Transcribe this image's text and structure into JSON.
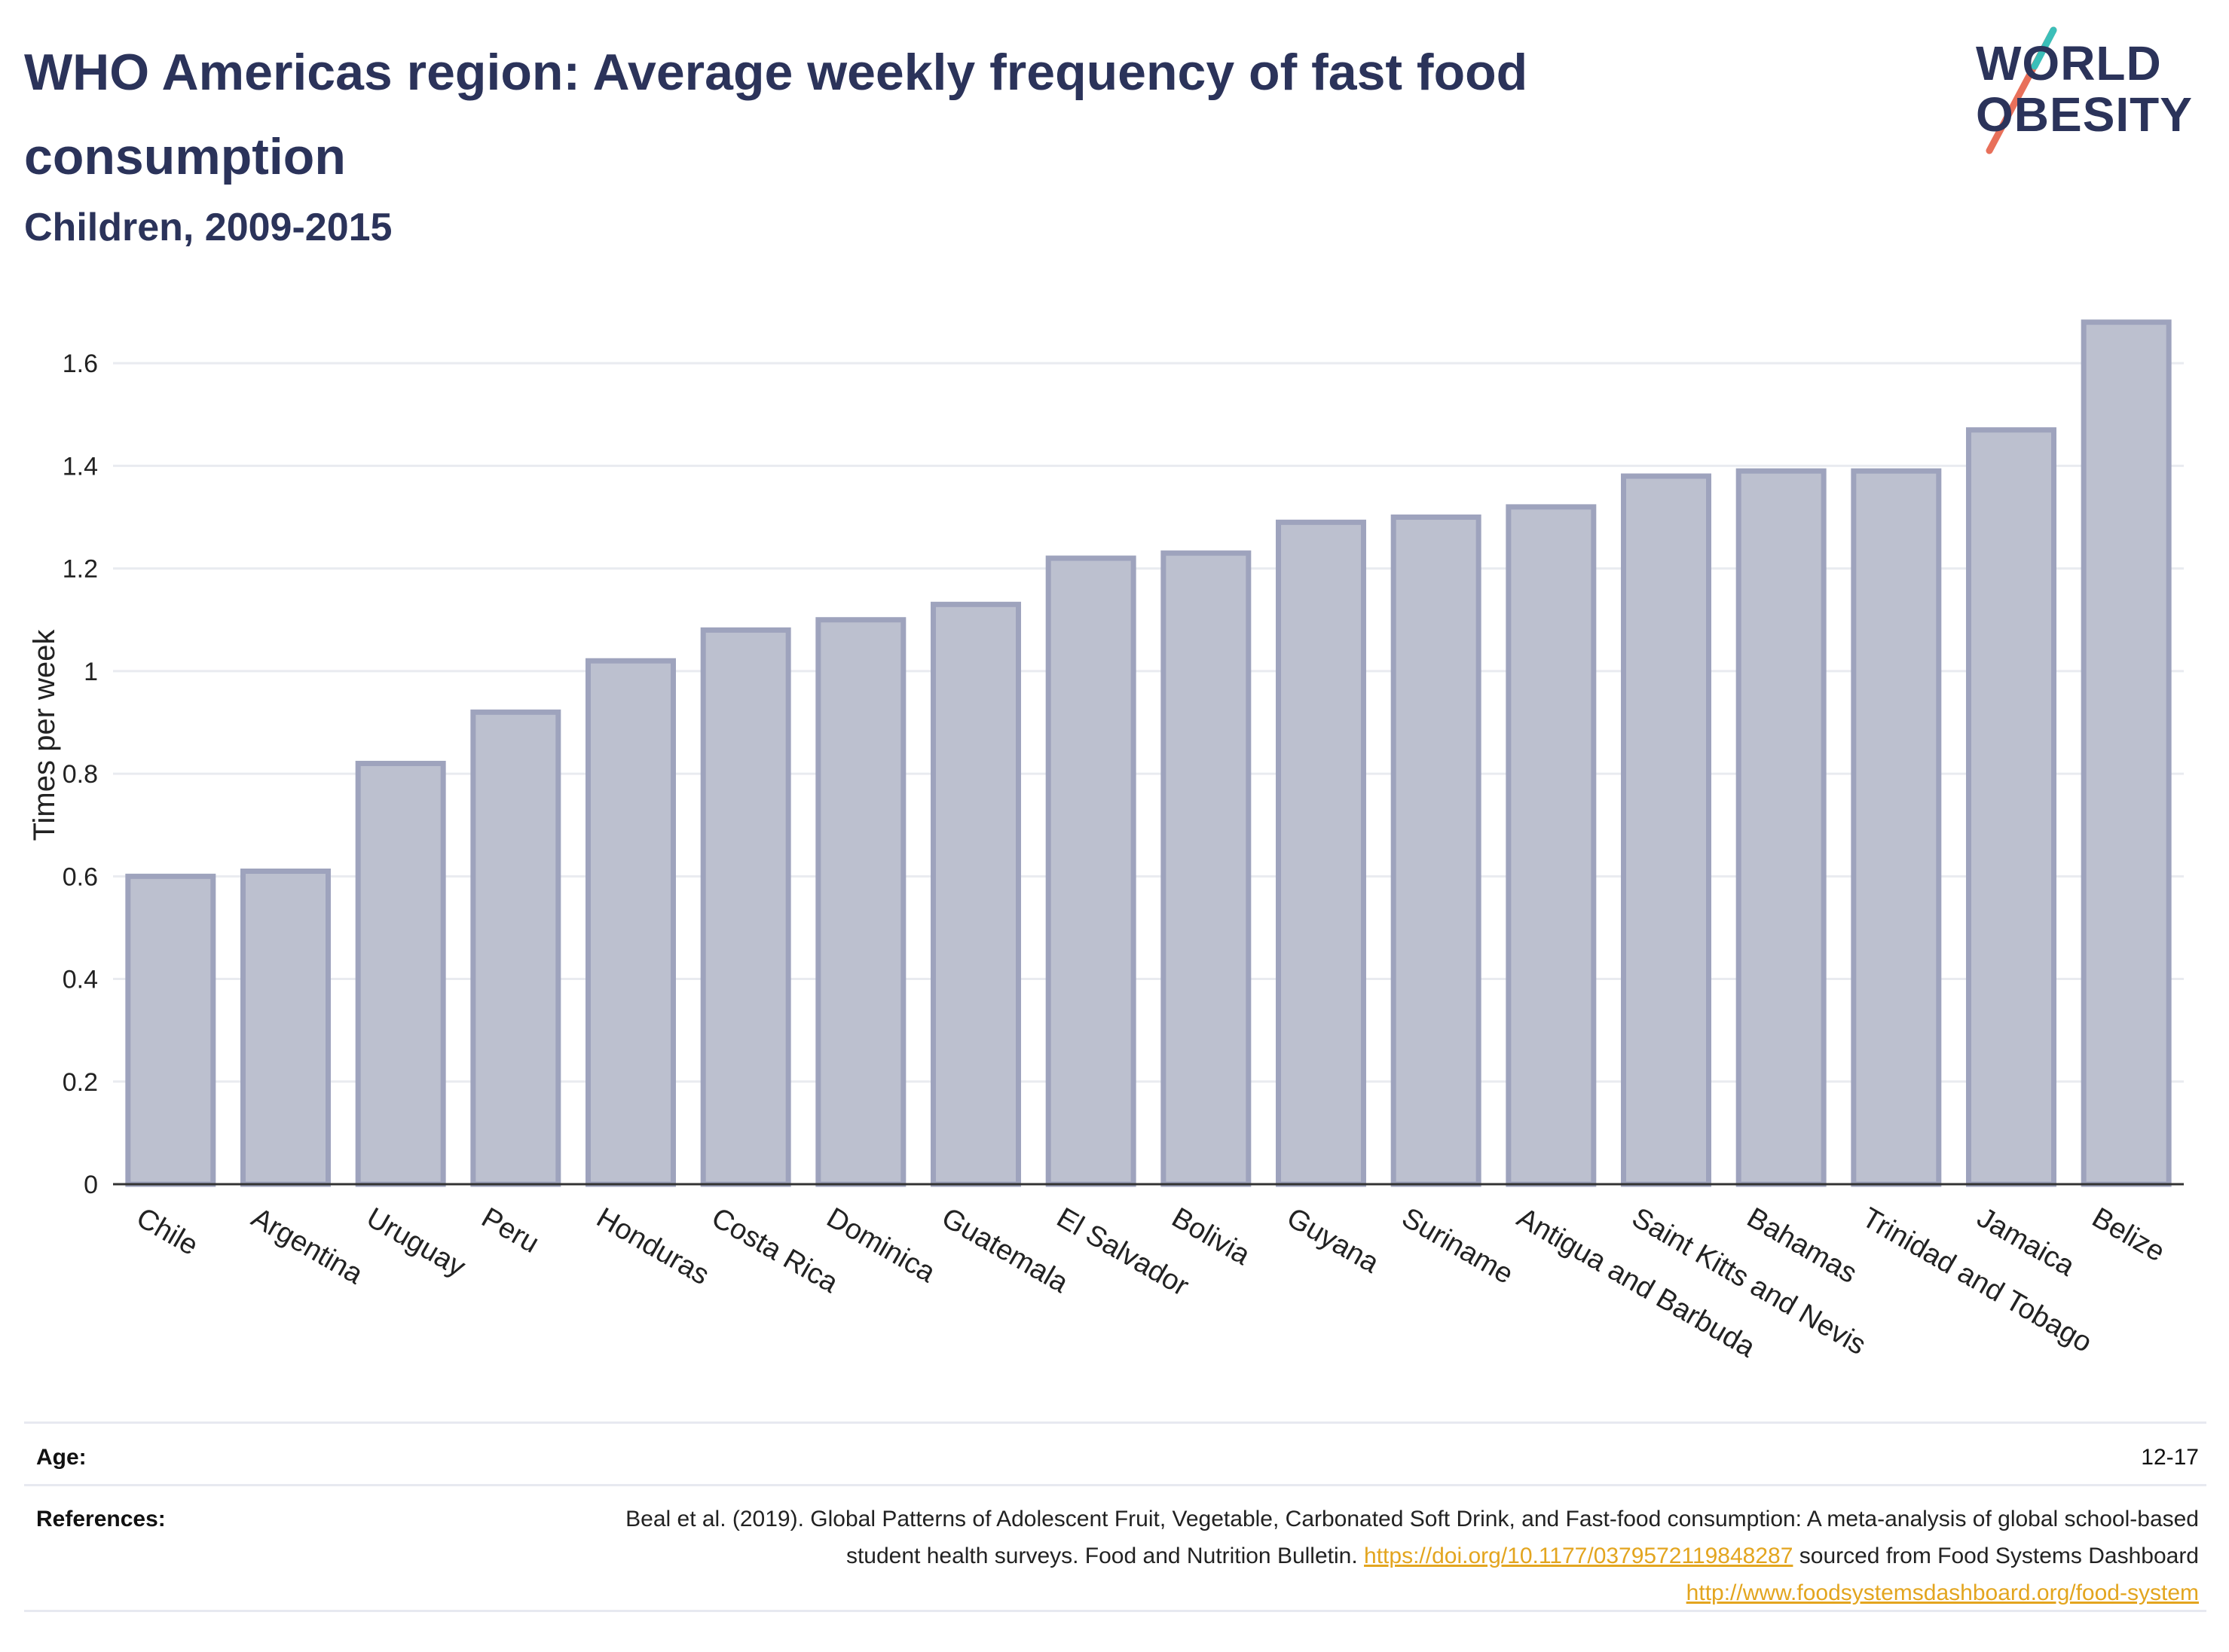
{
  "header": {
    "title": "WHO Americas region: Average weekly frequency of fast food consumption",
    "subtitle": "Children, 2009-2015"
  },
  "logo": {
    "line1": "WORLD",
    "line2": "OBESITY",
    "colors": {
      "text": "#2b335a",
      "slash_teal": "#3bbfb9",
      "slash_coral": "#e8705a"
    }
  },
  "chart_data": {
    "type": "bar",
    "ylabel": "Times per week",
    "xlabel": "",
    "ylim": [
      0,
      1.75
    ],
    "yticks": [
      0,
      0.2,
      0.4,
      0.6,
      0.8,
      1,
      1.2,
      1.4,
      1.6
    ],
    "ytick_labels": [
      "0",
      "0.2",
      "0.4",
      "0.6",
      "0.8",
      "1",
      "1.2",
      "1.4",
      "1.6"
    ],
    "grid": true,
    "bar_color": "#bcc0cf",
    "bar_border": "#9ea3bd",
    "categories": [
      "Chile",
      "Argentina",
      "Uruguay",
      "Peru",
      "Honduras",
      "Costa Rica",
      "Dominica",
      "Guatemala",
      "El Salvador",
      "Bolivia",
      "Guyana",
      "Suriname",
      "Antigua and Barbuda",
      "Saint Kitts and Nevis",
      "Bahamas",
      "Trinidad and Tobago",
      "Jamaica",
      "Belize"
    ],
    "values": [
      0.6,
      0.61,
      0.82,
      0.92,
      1.02,
      1.08,
      1.1,
      1.13,
      1.22,
      1.23,
      1.29,
      1.3,
      1.32,
      1.38,
      1.39,
      1.39,
      1.47,
      1.68
    ]
  },
  "info_table": {
    "age_label": "Age:",
    "age_value": "12-17",
    "references_label": "References:",
    "ref_text_1": "Beal et al. (2019). Global Patterns of Adolescent Fruit, Vegetable, Carbonated Soft Drink, and Fast-food consumption: A meta-analysis of global school-based student health surveys. Food and Nutrition Bulletin.",
    "ref_link_1": "https://doi.org/10.1177/0379572119848287",
    "ref_text_2": "sourced from Food Systems Dashboard",
    "ref_link_2": "http://www.foodsystemsdashboard.org/food-system"
  }
}
